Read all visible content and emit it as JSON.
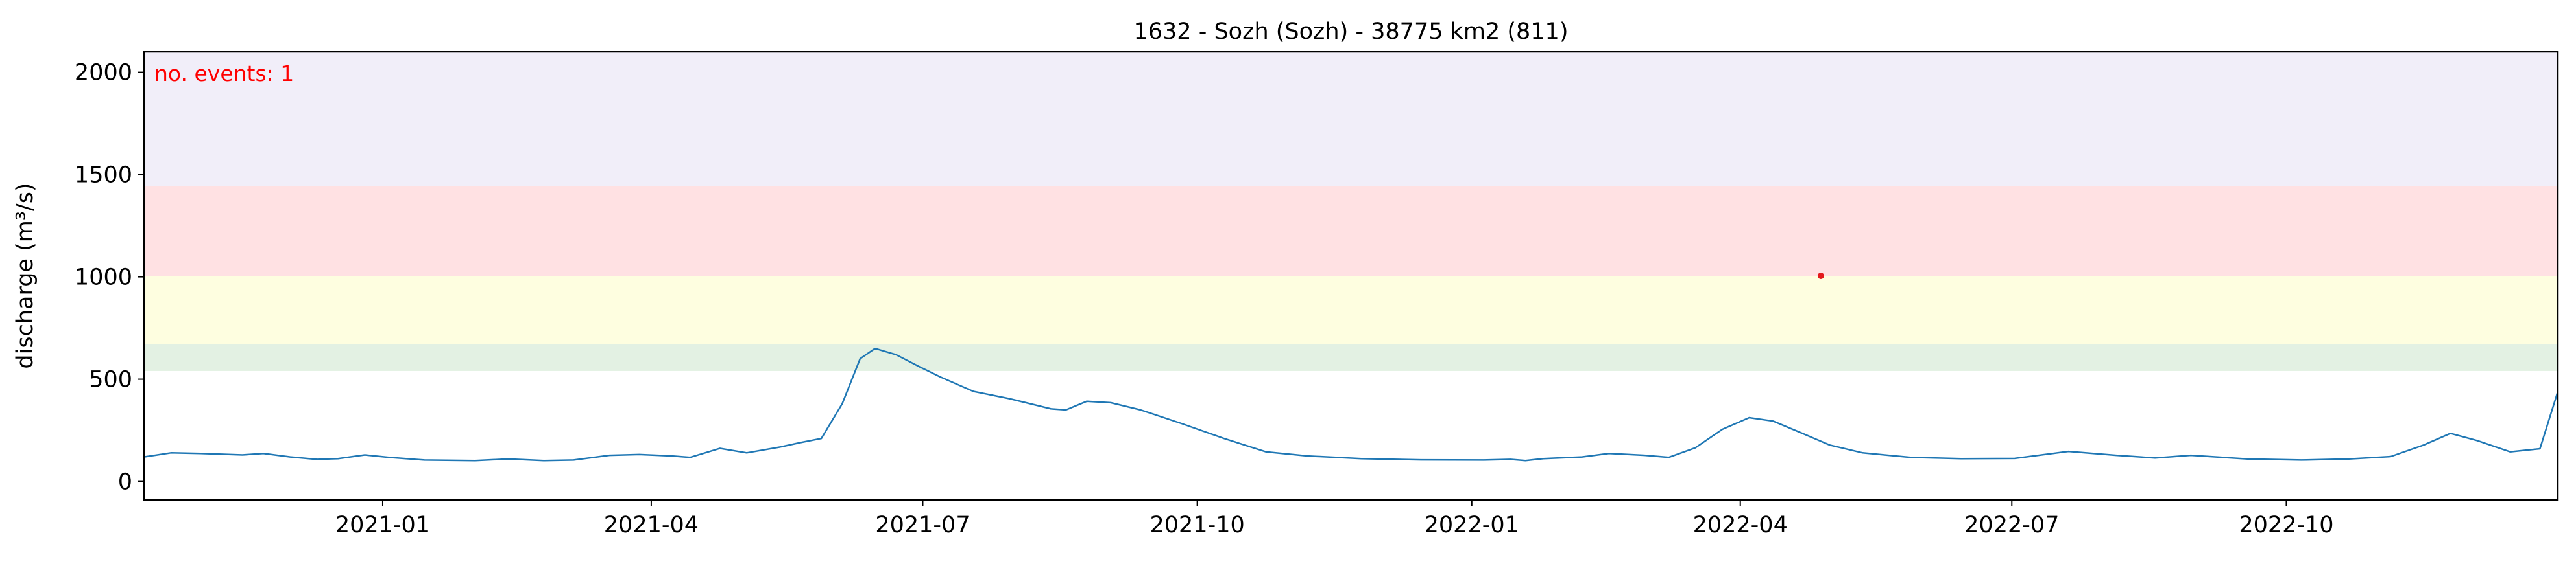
{
  "chart_data": {
    "type": "line",
    "title": "1632 - Sozh (Sozh) - 38775 km2 (811)",
    "xlabel": "",
    "ylabel": "discharge (m³/s)",
    "xlim": [
      "2020-10-13",
      "2022-12-31"
    ],
    "ylim": [
      -90,
      2100
    ],
    "yticks": [
      0,
      500,
      1000,
      1500,
      2000
    ],
    "xticks": [
      {
        "date": "2021-01-01",
        "label": "2021-01"
      },
      {
        "date": "2021-04-01",
        "label": "2021-04"
      },
      {
        "date": "2021-07-01",
        "label": "2021-07"
      },
      {
        "date": "2021-10-01",
        "label": "2021-10"
      },
      {
        "date": "2022-01-01",
        "label": "2022-01"
      },
      {
        "date": "2022-04-01",
        "label": "2022-04"
      },
      {
        "date": "2022-07-01",
        "label": "2022-07"
      },
      {
        "date": "2022-10-01",
        "label": "2022-10"
      }
    ],
    "threshold_bands": [
      {
        "from": 540,
        "to": 670,
        "color": "#e3f1e3"
      },
      {
        "from": 670,
        "to": 1005,
        "color": "#fefee0"
      },
      {
        "from": 1005,
        "to": 1445,
        "color": "#ffe1e3"
      },
      {
        "from": 1445,
        "to": 2100,
        "color": "#f1eef9"
      }
    ],
    "series": [
      {
        "color": "#1f77b4",
        "points": [
          [
            "2020-10-13",
            120
          ],
          [
            "2020-10-22",
            140
          ],
          [
            "2020-11-01",
            137
          ],
          [
            "2020-11-15",
            130
          ],
          [
            "2020-11-22",
            137
          ],
          [
            "2020-12-01",
            120
          ],
          [
            "2020-12-10",
            108
          ],
          [
            "2020-12-17",
            112
          ],
          [
            "2020-12-26",
            130
          ],
          [
            "2021-01-03",
            118
          ],
          [
            "2021-01-15",
            105
          ],
          [
            "2021-02-01",
            102
          ],
          [
            "2021-02-12",
            110
          ],
          [
            "2021-02-24",
            102
          ],
          [
            "2021-03-06",
            105
          ],
          [
            "2021-03-18",
            128
          ],
          [
            "2021-03-28",
            132
          ],
          [
            "2021-04-08",
            125
          ],
          [
            "2021-04-14",
            118
          ],
          [
            "2021-04-24",
            162
          ],
          [
            "2021-05-03",
            140
          ],
          [
            "2021-05-14",
            168
          ],
          [
            "2021-05-21",
            190
          ],
          [
            "2021-05-28",
            210
          ],
          [
            "2021-06-04",
            380
          ],
          [
            "2021-06-10",
            600
          ],
          [
            "2021-06-15",
            650
          ],
          [
            "2021-06-22",
            620
          ],
          [
            "2021-06-30",
            560
          ],
          [
            "2021-07-07",
            510
          ],
          [
            "2021-07-18",
            440
          ],
          [
            "2021-07-30",
            405
          ],
          [
            "2021-08-06",
            380
          ],
          [
            "2021-08-13",
            355
          ],
          [
            "2021-08-18",
            350
          ],
          [
            "2021-08-25",
            392
          ],
          [
            "2021-09-02",
            385
          ],
          [
            "2021-09-12",
            350
          ],
          [
            "2021-09-26",
            282
          ],
          [
            "2021-10-10",
            210
          ],
          [
            "2021-10-24",
            145
          ],
          [
            "2021-11-07",
            125
          ],
          [
            "2021-11-25",
            112
          ],
          [
            "2021-12-15",
            106
          ],
          [
            "2022-01-05",
            105
          ],
          [
            "2022-01-14",
            108
          ],
          [
            "2022-01-19",
            102
          ],
          [
            "2022-01-25",
            112
          ],
          [
            "2022-02-07",
            120
          ],
          [
            "2022-02-16",
            137
          ],
          [
            "2022-02-28",
            128
          ],
          [
            "2022-03-08",
            118
          ],
          [
            "2022-03-17",
            165
          ],
          [
            "2022-03-26",
            255
          ],
          [
            "2022-04-04",
            312
          ],
          [
            "2022-04-12",
            295
          ],
          [
            "2022-04-21",
            240
          ],
          [
            "2022-05-01",
            178
          ],
          [
            "2022-05-12",
            140
          ],
          [
            "2022-05-28",
            118
          ],
          [
            "2022-06-14",
            112
          ],
          [
            "2022-07-02",
            113
          ],
          [
            "2022-07-20",
            147
          ],
          [
            "2022-08-05",
            128
          ],
          [
            "2022-08-18",
            115
          ],
          [
            "2022-08-30",
            128
          ],
          [
            "2022-09-18",
            110
          ],
          [
            "2022-10-06",
            105
          ],
          [
            "2022-10-22",
            110
          ],
          [
            "2022-11-05",
            122
          ],
          [
            "2022-11-16",
            178
          ],
          [
            "2022-11-25",
            235
          ],
          [
            "2022-12-04",
            200
          ],
          [
            "2022-12-15",
            145
          ],
          [
            "2022-12-25",
            160
          ],
          [
            "2022-12-31",
            440
          ]
        ]
      }
    ],
    "event_points": [
      {
        "date": "2022-04-28",
        "value": 1005,
        "color": "#e31a1c"
      }
    ],
    "annotation": {
      "text": "no. events: 1",
      "color": "#ff0000",
      "position": "top-left"
    },
    "grid": false,
    "legend": "none"
  }
}
